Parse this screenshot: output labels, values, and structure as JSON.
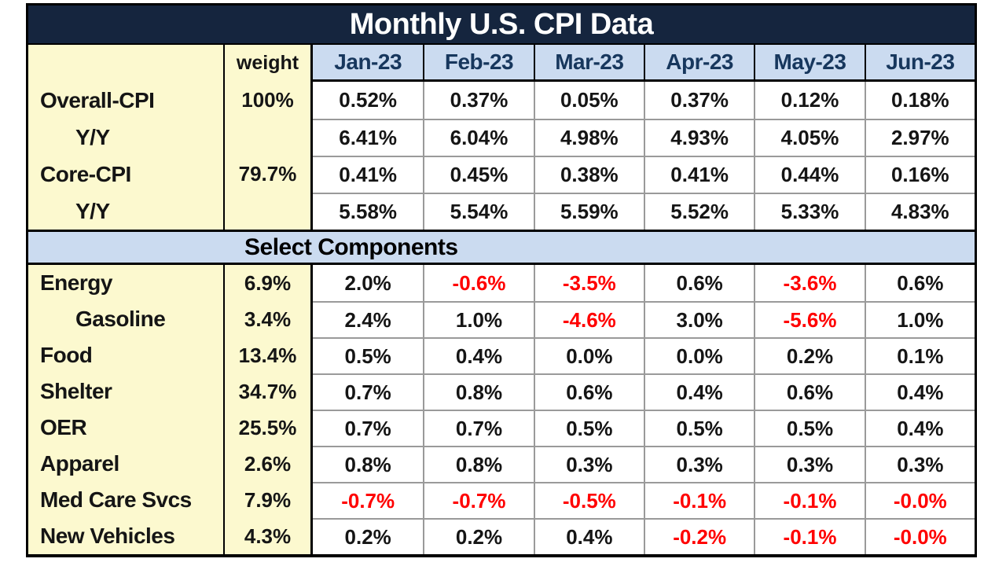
{
  "title": "Monthly U.S. CPI Data",
  "section_header": "Select Components",
  "weight_header": "weight",
  "chart_data": {
    "type": "table",
    "title": "Monthly U.S. CPI Data",
    "month_columns": [
      "Jan-23",
      "Feb-23",
      "Mar-23",
      "Apr-23",
      "May-23",
      "Jun-23"
    ],
    "weight_column_label": "weight",
    "top_section_rows": [
      {
        "label": "Overall-CPI",
        "weight": "100%",
        "indent": 0,
        "values": [
          "0.52%",
          "0.37%",
          "0.05%",
          "0.37%",
          "0.12%",
          "0.18%"
        ]
      },
      {
        "label": "Y/Y",
        "weight": "",
        "indent": 1,
        "values": [
          "6.41%",
          "6.04%",
          "4.98%",
          "4.93%",
          "4.05%",
          "2.97%"
        ]
      },
      {
        "label": "Core-CPI",
        "weight": "79.7%",
        "indent": 0,
        "values": [
          "0.41%",
          "0.45%",
          "0.38%",
          "0.41%",
          "0.44%",
          "0.16%"
        ]
      },
      {
        "label": "Y/Y",
        "weight": "",
        "indent": 1,
        "values": [
          "5.58%",
          "5.54%",
          "5.59%",
          "5.52%",
          "5.33%",
          "4.83%"
        ]
      }
    ],
    "select_components_rows": [
      {
        "label": "Energy",
        "weight": "6.9%",
        "indent": 0,
        "values": [
          "2.0%",
          "-0.6%",
          "-3.5%",
          "0.6%",
          "-3.6%",
          "0.6%"
        ]
      },
      {
        "label": "Gasoline",
        "weight": "3.4%",
        "indent": 1,
        "values": [
          "2.4%",
          "1.0%",
          "-4.6%",
          "3.0%",
          "-5.6%",
          "1.0%"
        ]
      },
      {
        "label": "Food",
        "weight": "13.4%",
        "indent": 0,
        "values": [
          "0.5%",
          "0.4%",
          "0.0%",
          "0.0%",
          "0.2%",
          "0.1%"
        ]
      },
      {
        "label": "Shelter",
        "weight": "34.7%",
        "indent": 0,
        "values": [
          "0.7%",
          "0.8%",
          "0.6%",
          "0.4%",
          "0.6%",
          "0.4%"
        ]
      },
      {
        "label": "OER",
        "weight": "25.5%",
        "indent": 0,
        "values": [
          "0.7%",
          "0.7%",
          "0.5%",
          "0.5%",
          "0.5%",
          "0.4%"
        ]
      },
      {
        "label": "Apparel",
        "weight": "2.6%",
        "indent": 0,
        "values": [
          "0.8%",
          "0.8%",
          "0.3%",
          "0.3%",
          "0.3%",
          "0.3%"
        ]
      },
      {
        "label": "Med Care Svcs",
        "weight": "7.9%",
        "indent": 0,
        "values": [
          "-0.7%",
          "-0.7%",
          "-0.5%",
          "-0.1%",
          "-0.1%",
          "-0.0%"
        ]
      },
      {
        "label": "New Vehicles",
        "weight": "4.3%",
        "indent": 0,
        "values": [
          "0.2%",
          "0.2%",
          "0.4%",
          "-0.2%",
          "-0.1%",
          "-0.0%"
        ]
      }
    ],
    "negative_values_shown_in_red": true
  },
  "colors": {
    "title_bg": "#15253E",
    "title_text": "#FFFFFF",
    "header_bg": "#CBDBF0",
    "header_text": "#17375D",
    "label_bg": "#FCF9CF",
    "negative_text": "#FF0000",
    "data_text": "#151515",
    "grid_line": "#9A9A9A",
    "section_border": "#000000"
  }
}
